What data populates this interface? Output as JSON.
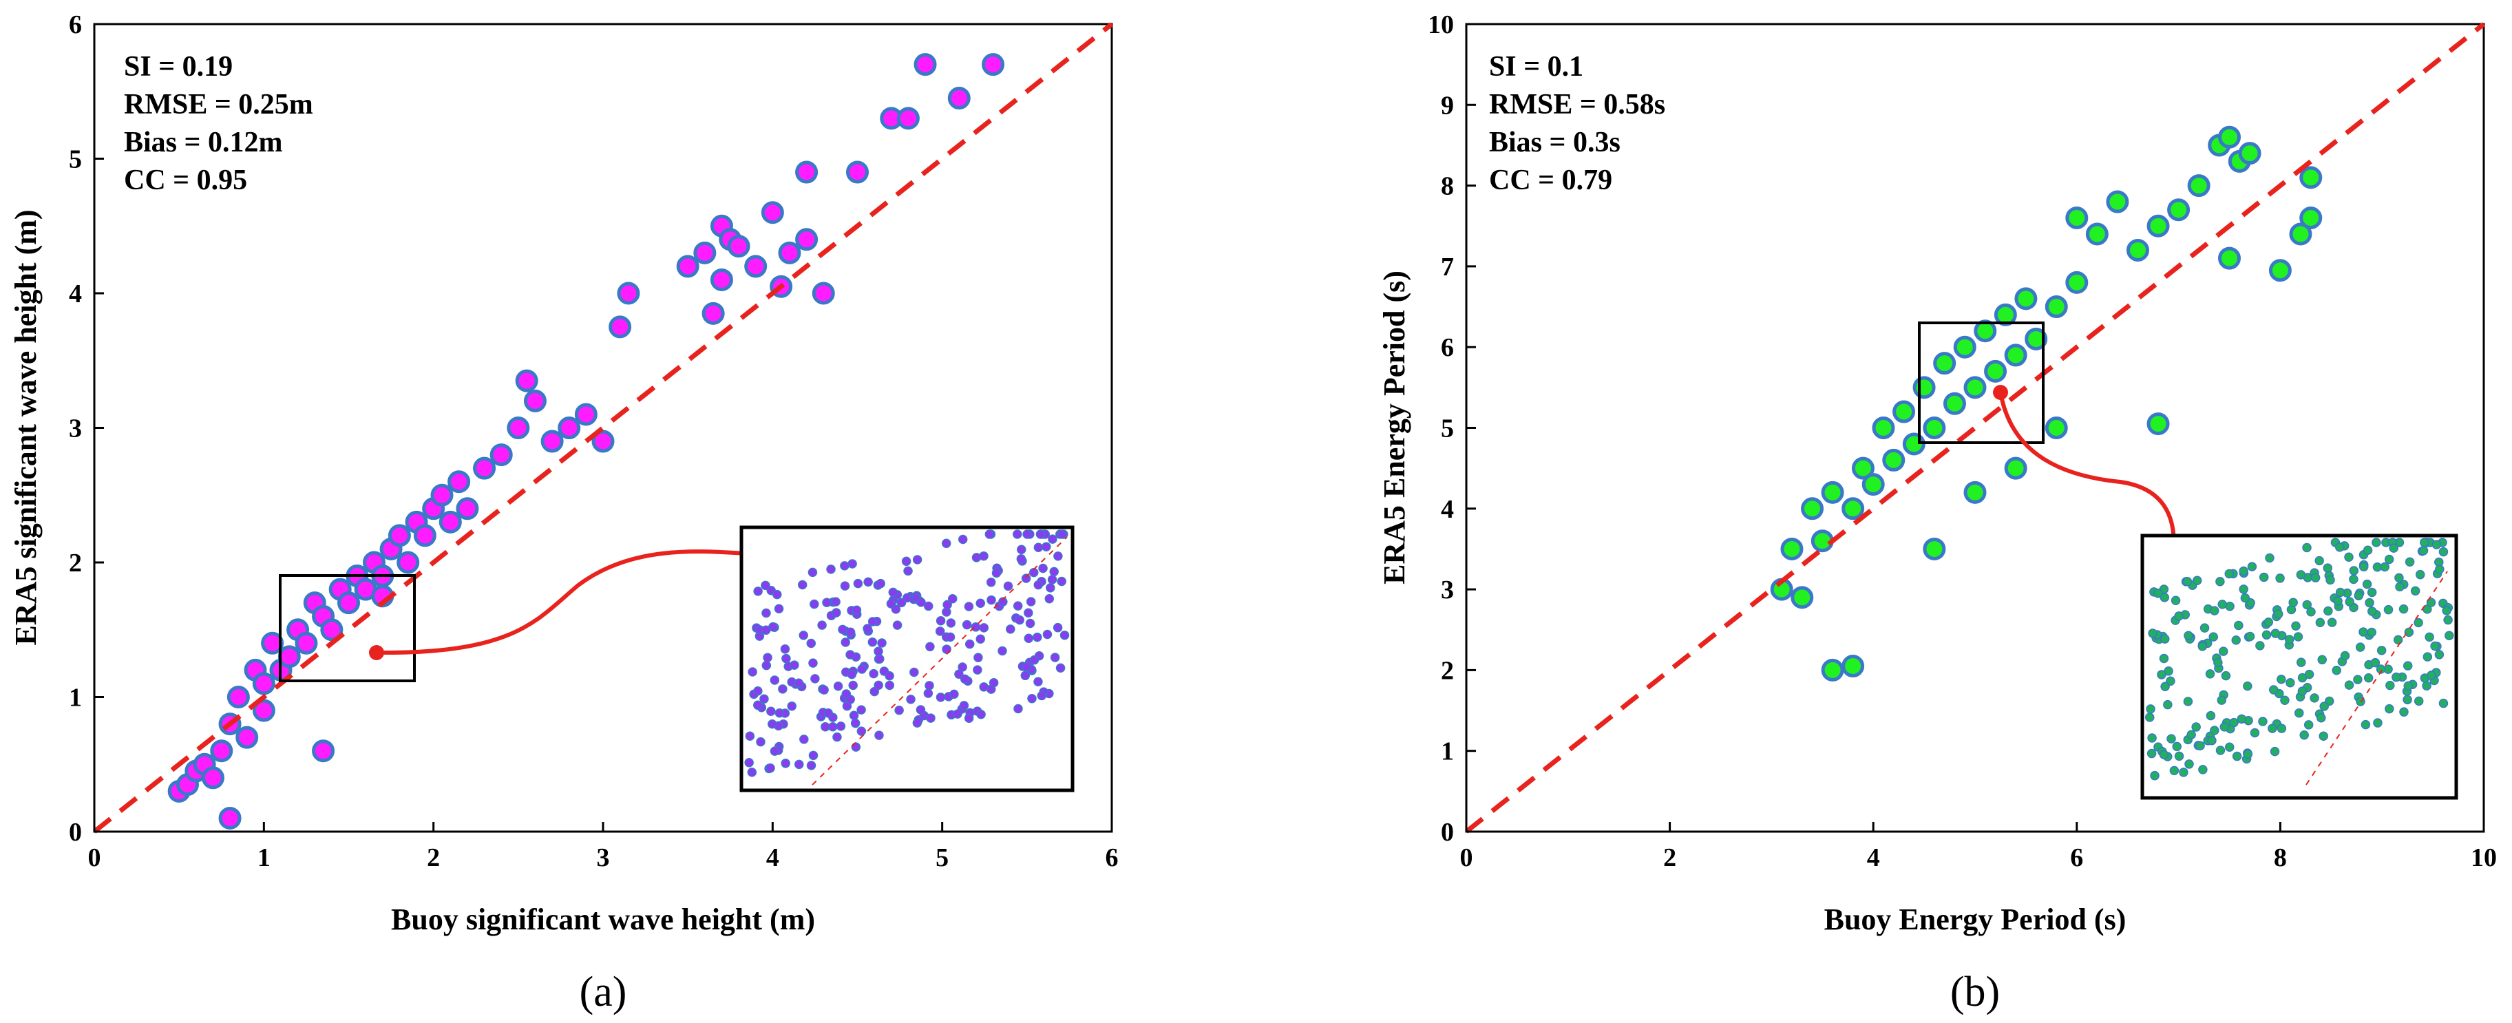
{
  "chart_data": [
    {
      "type": "scatter",
      "panel_label": "(a)",
      "xlabel": "Buoy significant wave height (m)",
      "ylabel": "ERA5 significant wave height (m)",
      "xlim": [
        0,
        6
      ],
      "ylim": [
        0,
        6
      ],
      "xticks": [
        "0",
        "1",
        "2",
        "3",
        "4",
        "5",
        "6"
      ],
      "yticks": [
        "0",
        "1",
        "2",
        "3",
        "4",
        "5",
        "6"
      ],
      "stats": [
        "SI = 0.19",
        "RMSE = 0.25m",
        "Bias = 0.12m",
        "CC = 0.95"
      ],
      "reference_line": {
        "type": "1:1",
        "color": "#e8231d",
        "style": "dashed"
      },
      "marker_fill": "#ff1cff",
      "marker_edge": "#3a78c8",
      "inset_marker_fill": "#8a3cf0",
      "zoom_box": {
        "x": [
          1.1,
          1.9
        ],
        "y": [
          1.1,
          1.9
        ]
      },
      "points_note_n": 520,
      "points": [
        [
          0.5,
          0.3
        ],
        [
          0.55,
          0.35
        ],
        [
          0.6,
          0.45
        ],
        [
          0.65,
          0.5
        ],
        [
          0.7,
          0.4
        ],
        [
          0.8,
          0.1
        ],
        [
          0.75,
          0.6
        ],
        [
          0.8,
          0.8
        ],
        [
          0.85,
          1.0
        ],
        [
          0.9,
          0.7
        ],
        [
          0.95,
          1.2
        ],
        [
          1.0,
          1.1
        ],
        [
          1.0,
          0.9
        ],
        [
          1.05,
          1.4
        ],
        [
          1.1,
          1.2
        ],
        [
          1.15,
          1.3
        ],
        [
          1.2,
          1.5
        ],
        [
          1.25,
          1.4
        ],
        [
          1.3,
          1.7
        ],
        [
          1.35,
          1.6
        ],
        [
          1.4,
          1.5
        ],
        [
          1.45,
          1.8
        ],
        [
          1.5,
          1.7
        ],
        [
          1.55,
          1.9
        ],
        [
          1.6,
          1.8
        ],
        [
          1.65,
          2.0
        ],
        [
          1.7,
          1.9
        ],
        [
          1.75,
          2.1
        ],
        [
          1.8,
          2.2
        ],
        [
          1.85,
          2.0
        ],
        [
          1.9,
          2.3
        ],
        [
          1.95,
          2.2
        ],
        [
          2.0,
          2.4
        ],
        [
          2.05,
          2.5
        ],
        [
          2.1,
          2.3
        ],
        [
          2.15,
          2.6
        ],
        [
          2.2,
          2.4
        ],
        [
          2.3,
          2.7
        ],
        [
          2.4,
          2.8
        ],
        [
          2.5,
          3.0
        ],
        [
          2.6,
          3.2
        ],
        [
          2.55,
          3.35
        ],
        [
          2.7,
          2.9
        ],
        [
          2.8,
          3.0
        ],
        [
          2.9,
          3.1
        ],
        [
          3.0,
          2.9
        ],
        [
          3.1,
          3.75
        ],
        [
          3.15,
          4.0
        ],
        [
          3.5,
          4.2
        ],
        [
          3.6,
          4.3
        ],
        [
          3.7,
          4.5
        ],
        [
          3.75,
          4.4
        ],
        [
          3.8,
          4.35
        ],
        [
          3.9,
          4.2
        ],
        [
          4.0,
          4.6
        ],
        [
          4.1,
          4.3
        ],
        [
          4.2,
          4.9
        ],
        [
          4.3,
          4.0
        ],
        [
          4.5,
          4.9
        ],
        [
          4.7,
          5.3
        ],
        [
          4.8,
          5.3
        ],
        [
          4.9,
          5.7
        ],
        [
          5.1,
          5.45
        ],
        [
          5.3,
          5.7
        ],
        [
          4.2,
          4.4
        ],
        [
          4.05,
          4.05
        ],
        [
          3.65,
          3.85
        ],
        [
          3.7,
          4.1
        ],
        [
          1.35,
          0.6
        ],
        [
          1.7,
          1.75
        ]
      ]
    },
    {
      "type": "scatter",
      "panel_label": "(b)",
      "xlabel": "Buoy Energy Period (s)",
      "ylabel": "ERA5 Energy Period (s)",
      "xlim": [
        0,
        10
      ],
      "ylim": [
        0,
        10
      ],
      "xticks": [
        "0",
        "2",
        "4",
        "6",
        "8",
        "10"
      ],
      "yticks": [
        "0",
        "1",
        "2",
        "3",
        "4",
        "5",
        "6",
        "7",
        "8",
        "9",
        "10"
      ],
      "stats": [
        "SI = 0.1",
        "RMSE = 0.58s",
        "Bias = 0.3s",
        "CC = 0.79"
      ],
      "reference_line": {
        "type": "1:1",
        "color": "#e8231d",
        "style": "dashed"
      },
      "marker_fill": "#21f021",
      "marker_edge": "#3a78c8",
      "inset_marker_fill": "#22b060",
      "zoom_box": {
        "x": [
          4.4,
          5.6
        ],
        "y": [
          4.8,
          6.3
        ]
      },
      "points": [
        [
          3.1,
          3.0
        ],
        [
          3.2,
          3.5
        ],
        [
          3.3,
          2.9
        ],
        [
          3.4,
          4.0
        ],
        [
          3.5,
          3.6
        ],
        [
          3.6,
          2.0
        ],
        [
          3.8,
          2.05
        ],
        [
          3.6,
          4.2
        ],
        [
          3.8,
          4.0
        ],
        [
          3.9,
          4.5
        ],
        [
          4.0,
          4.3
        ],
        [
          4.1,
          5.0
        ],
        [
          4.2,
          4.6
        ],
        [
          4.3,
          5.2
        ],
        [
          4.4,
          4.8
        ],
        [
          4.5,
          5.5
        ],
        [
          4.6,
          5.0
        ],
        [
          4.7,
          5.8
        ],
        [
          4.8,
          5.3
        ],
        [
          4.9,
          6.0
        ],
        [
          5.0,
          5.5
        ],
        [
          5.1,
          6.2
        ],
        [
          5.2,
          5.7
        ],
        [
          5.3,
          6.4
        ],
        [
          5.4,
          5.9
        ],
        [
          5.5,
          6.6
        ],
        [
          5.6,
          6.1
        ],
        [
          5.8,
          6.5
        ],
        [
          6.0,
          6.8
        ],
        [
          6.0,
          7.6
        ],
        [
          6.2,
          7.4
        ],
        [
          6.4,
          7.8
        ],
        [
          6.6,
          7.2
        ],
        [
          6.8,
          7.5
        ],
        [
          6.8,
          5.05
        ],
        [
          7.0,
          7.7
        ],
        [
          7.2,
          8.0
        ],
        [
          7.4,
          8.5
        ],
        [
          7.5,
          8.6
        ],
        [
          7.6,
          8.3
        ],
        [
          7.7,
          8.4
        ],
        [
          7.5,
          7.1
        ],
        [
          8.0,
          6.95
        ],
        [
          8.2,
          7.4
        ],
        [
          8.3,
          7.6
        ],
        [
          8.3,
          8.1
        ],
        [
          4.6,
          3.5
        ],
        [
          5.0,
          4.2
        ],
        [
          5.4,
          4.5
        ],
        [
          5.8,
          5.0
        ]
      ]
    }
  ]
}
